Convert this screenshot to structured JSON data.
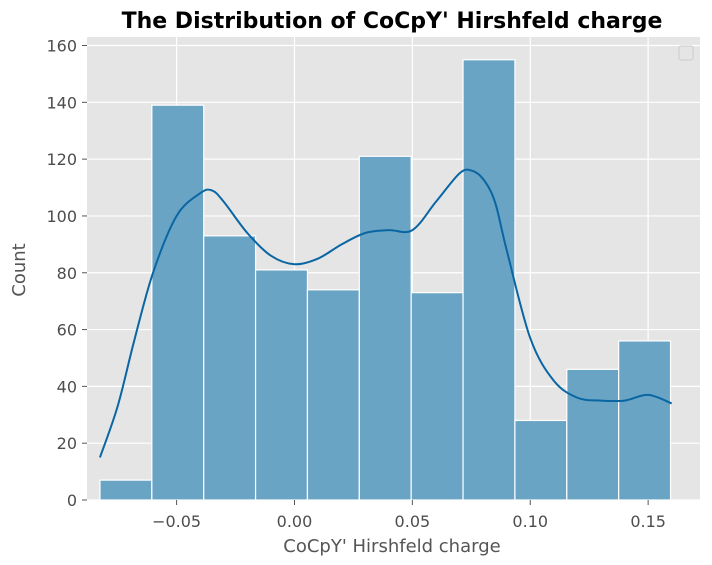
{
  "chart_data": {
    "type": "bar",
    "title": "The Distribution of CoCpY' Hirshfeld charge",
    "xlabel": "CoCpY' Hirshfeld charge",
    "ylabel": "Count",
    "xlim": [
      -0.088,
      0.172
    ],
    "ylim": [
      0,
      163
    ],
    "xticks": [
      -0.05,
      0.0,
      0.05,
      0.1,
      0.15
    ],
    "xtick_labels": [
      "−0.05",
      "0.00",
      "0.05",
      "0.10",
      "0.15"
    ],
    "yticks": [
      0,
      20,
      40,
      60,
      80,
      100,
      120,
      140,
      160
    ],
    "ytick_labels": [
      "0",
      "20",
      "40",
      "60",
      "80",
      "100",
      "120",
      "140",
      "160"
    ],
    "bin_edges": [
      -0.0825,
      -0.0605,
      -0.0385,
      -0.0165,
      0.0055,
      0.0275,
      0.0495,
      0.0715,
      0.0935,
      0.1155,
      0.1375,
      0.1595
    ],
    "values": [
      7,
      139,
      93,
      81,
      74,
      121,
      73,
      155,
      28,
      46,
      56
    ],
    "kde": {
      "x": [
        -0.0825,
        -0.075,
        -0.068,
        -0.06,
        -0.05,
        -0.04,
        -0.035,
        -0.03,
        -0.02,
        -0.01,
        0.0,
        0.01,
        0.02,
        0.03,
        0.04,
        0.05,
        0.06,
        0.07,
        0.075,
        0.08,
        0.085,
        0.09,
        0.1,
        0.11,
        0.12,
        0.13,
        0.14,
        0.15,
        0.16
      ],
      "y": [
        15,
        33,
        56,
        80,
        100,
        108,
        109,
        105,
        94,
        86,
        83,
        85,
        90,
        94,
        95,
        95,
        105,
        115,
        116,
        113,
        105,
        88,
        57,
        42,
        36,
        35,
        35,
        37,
        34
      ]
    },
    "grid": true,
    "legend_placement": "top-right",
    "legend_entries": [],
    "colors": {
      "background": "#e5e5e5",
      "grid": "#ffffff",
      "bar_fill": "#6aa4c5",
      "bar_edge": "#ffffff",
      "kde_line": "#0a66a3"
    }
  }
}
